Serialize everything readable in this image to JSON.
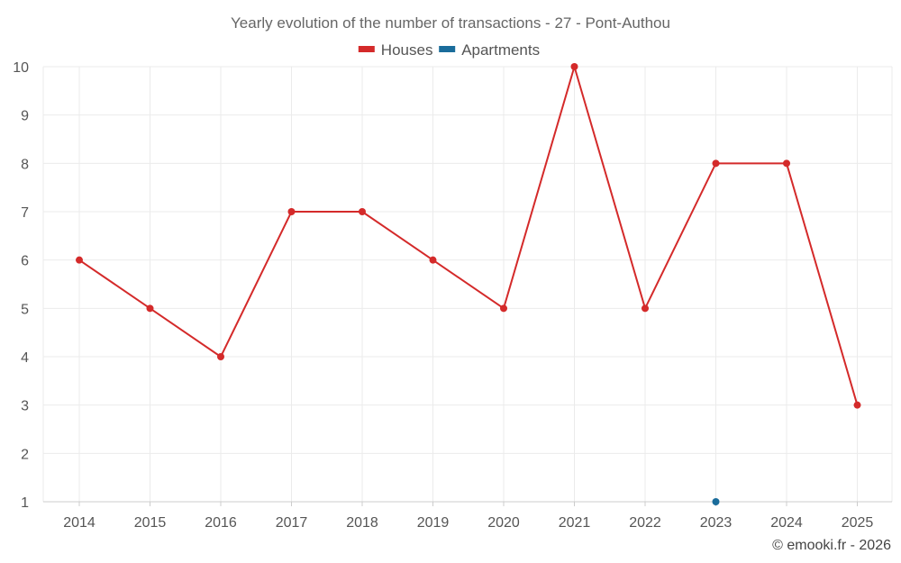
{
  "chart_data": {
    "type": "line",
    "title": "Yearly evolution of the number of transactions - 27 - Pont-Authou",
    "x": [
      "2014",
      "2015",
      "2016",
      "2017",
      "2018",
      "2019",
      "2020",
      "2021",
      "2022",
      "2023",
      "2024",
      "2025"
    ],
    "series": [
      {
        "name": "Houses",
        "color": "#d42a2a",
        "values": [
          6,
          5,
          4,
          7,
          7,
          6,
          5,
          10,
          5,
          8,
          8,
          3
        ]
      },
      {
        "name": "Apartments",
        "color": "#1a6c9b",
        "values": [
          null,
          null,
          null,
          null,
          null,
          null,
          null,
          null,
          null,
          1,
          null,
          null
        ]
      }
    ],
    "y_ticks": [
      1,
      2,
      3,
      4,
      5,
      6,
      7,
      8,
      9,
      10
    ],
    "ylim": [
      1,
      10
    ],
    "grid": true,
    "legend_position": "top-center"
  },
  "credit": "© emooki.fr - 2026"
}
